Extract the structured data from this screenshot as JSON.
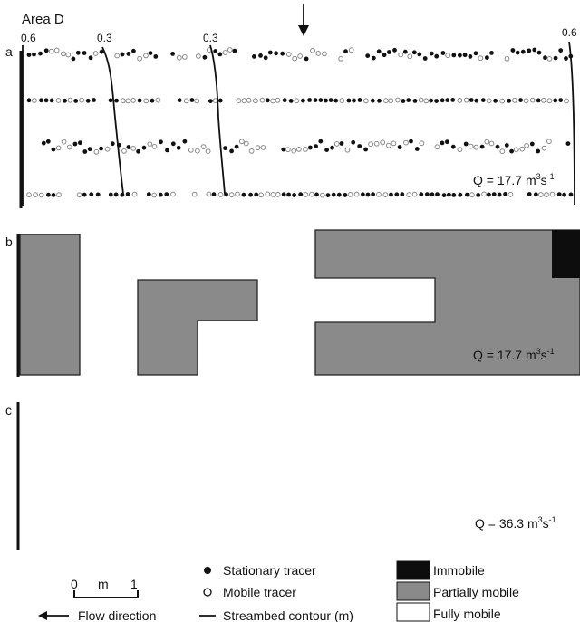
{
  "figure": {
    "area_label": "Area D",
    "panels": {
      "a": {
        "letter": "a",
        "discharge": "Q = 17.7 m",
        "discharge_sup": "3",
        "discharge_unit": "s",
        "discharge_sup2": "-1"
      },
      "b": {
        "letter": "b",
        "discharge": "Q = 17.7 m",
        "discharge_sup": "3",
        "discharge_unit": "s",
        "discharge_sup2": "-1"
      },
      "c": {
        "letter": "c",
        "discharge": "Q = 36.3 m",
        "discharge_sup": "3",
        "discharge_unit": "s",
        "discharge_sup2": "-1"
      }
    },
    "contour_labels": [
      "0.6",
      "0.3",
      "0.3",
      "0.6"
    ],
    "scale_bar": {
      "start": "0",
      "unit": "m",
      "end": "1"
    },
    "flow_direction_label": "Flow direction",
    "legend": {
      "stationary": "Stationary tracer",
      "mobile": "Mobile tracer",
      "contour": "Streambed contour (m)",
      "immobile": "Immobile",
      "partially": "Partially mobile",
      "fully": "Fully mobile"
    },
    "colors": {
      "stationary": "#111111",
      "mobile_stroke": "#888888",
      "immobile": "#0d0d0d",
      "partially": "#8a8a8a",
      "fully": "#ffffff",
      "outline": "#222222"
    }
  }
}
